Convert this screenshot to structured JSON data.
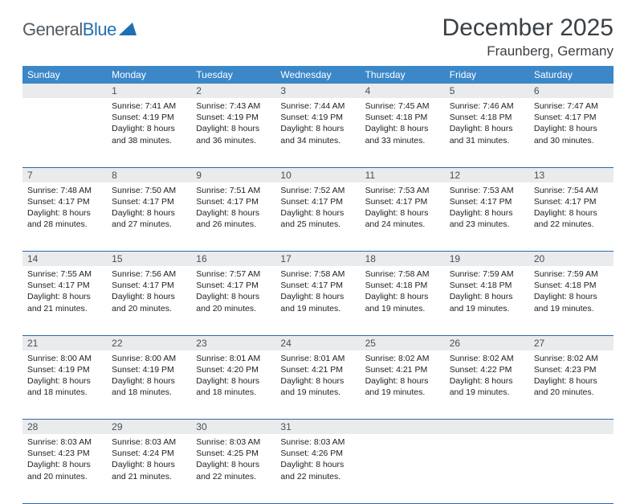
{
  "logo": {
    "part1": "General",
    "part2": "Blue"
  },
  "title": "December 2025",
  "location": "Fraunberg, Germany",
  "header_bg": "#3b87c8",
  "daynum_bg": "#e9ebed",
  "rule_color": "#2f6aa8",
  "weekdays": [
    "Sunday",
    "Monday",
    "Tuesday",
    "Wednesday",
    "Thursday",
    "Friday",
    "Saturday"
  ],
  "weeks": [
    [
      null,
      {
        "n": "1",
        "sunrise": "7:41 AM",
        "sunset": "4:19 PM",
        "dl": "8 hours and 38 minutes."
      },
      {
        "n": "2",
        "sunrise": "7:43 AM",
        "sunset": "4:19 PM",
        "dl": "8 hours and 36 minutes."
      },
      {
        "n": "3",
        "sunrise": "7:44 AM",
        "sunset": "4:19 PM",
        "dl": "8 hours and 34 minutes."
      },
      {
        "n": "4",
        "sunrise": "7:45 AM",
        "sunset": "4:18 PM",
        "dl": "8 hours and 33 minutes."
      },
      {
        "n": "5",
        "sunrise": "7:46 AM",
        "sunset": "4:18 PM",
        "dl": "8 hours and 31 minutes."
      },
      {
        "n": "6",
        "sunrise": "7:47 AM",
        "sunset": "4:17 PM",
        "dl": "8 hours and 30 minutes."
      }
    ],
    [
      {
        "n": "7",
        "sunrise": "7:48 AM",
        "sunset": "4:17 PM",
        "dl": "8 hours and 28 minutes."
      },
      {
        "n": "8",
        "sunrise": "7:50 AM",
        "sunset": "4:17 PM",
        "dl": "8 hours and 27 minutes."
      },
      {
        "n": "9",
        "sunrise": "7:51 AM",
        "sunset": "4:17 PM",
        "dl": "8 hours and 26 minutes."
      },
      {
        "n": "10",
        "sunrise": "7:52 AM",
        "sunset": "4:17 PM",
        "dl": "8 hours and 25 minutes."
      },
      {
        "n": "11",
        "sunrise": "7:53 AM",
        "sunset": "4:17 PM",
        "dl": "8 hours and 24 minutes."
      },
      {
        "n": "12",
        "sunrise": "7:53 AM",
        "sunset": "4:17 PM",
        "dl": "8 hours and 23 minutes."
      },
      {
        "n": "13",
        "sunrise": "7:54 AM",
        "sunset": "4:17 PM",
        "dl": "8 hours and 22 minutes."
      }
    ],
    [
      {
        "n": "14",
        "sunrise": "7:55 AM",
        "sunset": "4:17 PM",
        "dl": "8 hours and 21 minutes."
      },
      {
        "n": "15",
        "sunrise": "7:56 AM",
        "sunset": "4:17 PM",
        "dl": "8 hours and 20 minutes."
      },
      {
        "n": "16",
        "sunrise": "7:57 AM",
        "sunset": "4:17 PM",
        "dl": "8 hours and 20 minutes."
      },
      {
        "n": "17",
        "sunrise": "7:58 AM",
        "sunset": "4:17 PM",
        "dl": "8 hours and 19 minutes."
      },
      {
        "n": "18",
        "sunrise": "7:58 AM",
        "sunset": "4:18 PM",
        "dl": "8 hours and 19 minutes."
      },
      {
        "n": "19",
        "sunrise": "7:59 AM",
        "sunset": "4:18 PM",
        "dl": "8 hours and 19 minutes."
      },
      {
        "n": "20",
        "sunrise": "7:59 AM",
        "sunset": "4:18 PM",
        "dl": "8 hours and 19 minutes."
      }
    ],
    [
      {
        "n": "21",
        "sunrise": "8:00 AM",
        "sunset": "4:19 PM",
        "dl": "8 hours and 18 minutes."
      },
      {
        "n": "22",
        "sunrise": "8:00 AM",
        "sunset": "4:19 PM",
        "dl": "8 hours and 18 minutes."
      },
      {
        "n": "23",
        "sunrise": "8:01 AM",
        "sunset": "4:20 PM",
        "dl": "8 hours and 18 minutes."
      },
      {
        "n": "24",
        "sunrise": "8:01 AM",
        "sunset": "4:21 PM",
        "dl": "8 hours and 19 minutes."
      },
      {
        "n": "25",
        "sunrise": "8:02 AM",
        "sunset": "4:21 PM",
        "dl": "8 hours and 19 minutes."
      },
      {
        "n": "26",
        "sunrise": "8:02 AM",
        "sunset": "4:22 PM",
        "dl": "8 hours and 19 minutes."
      },
      {
        "n": "27",
        "sunrise": "8:02 AM",
        "sunset": "4:23 PM",
        "dl": "8 hours and 20 minutes."
      }
    ],
    [
      {
        "n": "28",
        "sunrise": "8:03 AM",
        "sunset": "4:23 PM",
        "dl": "8 hours and 20 minutes."
      },
      {
        "n": "29",
        "sunrise": "8:03 AM",
        "sunset": "4:24 PM",
        "dl": "8 hours and 21 minutes."
      },
      {
        "n": "30",
        "sunrise": "8:03 AM",
        "sunset": "4:25 PM",
        "dl": "8 hours and 22 minutes."
      },
      {
        "n": "31",
        "sunrise": "8:03 AM",
        "sunset": "4:26 PM",
        "dl": "8 hours and 22 minutes."
      },
      null,
      null,
      null
    ]
  ],
  "labels": {
    "sunrise": "Sunrise:",
    "sunset": "Sunset:",
    "daylight": "Daylight:"
  }
}
